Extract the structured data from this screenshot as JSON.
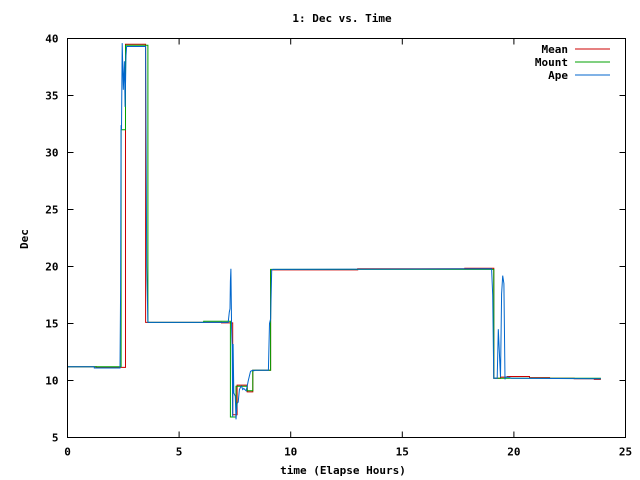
{
  "chart_data": {
    "type": "line",
    "title": "1: Dec vs. Time",
    "xlabel": "time (Elapse Hours)",
    "ylabel": "Dec",
    "xlim": [
      0,
      25
    ],
    "ylim": [
      5,
      40
    ],
    "xticks": [
      0,
      5,
      10,
      15,
      20,
      25
    ],
    "yticks": [
      5,
      10,
      15,
      20,
      25,
      30,
      35,
      40
    ],
    "grid": false,
    "legend_position": "top-right",
    "series": [
      {
        "name": "Mean",
        "color": "#cc0000",
        "x": [
          0,
          0.15,
          0.15,
          1.3,
          1.3,
          2.1,
          2.1,
          2.6,
          2.6,
          3.5,
          3.5,
          6.9,
          6.9,
          7.4,
          7.4,
          7.6,
          7.6,
          8.05,
          8.05,
          8.3,
          8.3,
          9.1,
          9.1,
          13.0,
          13.0,
          17.8,
          17.8,
          19.1,
          19.1,
          19.4,
          19.4,
          19.7,
          19.7,
          20.7,
          20.7,
          21.6,
          21.6,
          22.7,
          22.7,
          23.6,
          23.6,
          23.9
        ],
        "y": [
          11.2,
          11.2,
          11.2,
          11.2,
          11.15,
          11.15,
          11.15,
          11.15,
          39.5,
          39.5,
          15.1,
          15.1,
          15.05,
          15.05,
          7.0,
          7.0,
          9.6,
          9.6,
          9.0,
          9.0,
          10.9,
          10.9,
          19.7,
          19.7,
          19.8,
          19.8,
          19.85,
          19.85,
          10.2,
          10.2,
          10.3,
          10.3,
          10.35,
          10.35,
          10.25,
          10.25,
          10.2,
          10.2,
          10.15,
          10.15,
          10.1,
          10.1
        ]
      },
      {
        "name": "Mount",
        "color": "#00a000",
        "x": [
          0,
          2.4,
          2.4,
          2.6,
          2.6,
          3.6,
          3.6,
          6.1,
          6.1,
          7.3,
          7.3,
          7.55,
          7.55,
          8.05,
          8.05,
          8.3,
          8.3,
          9.1,
          9.1,
          19.1,
          19.1,
          19.4,
          19.4,
          23.9
        ],
        "y": [
          11.2,
          11.2,
          32.0,
          32.0,
          39.4,
          39.4,
          15.1,
          15.1,
          15.2,
          15.2,
          6.8,
          6.8,
          9.5,
          9.5,
          9.1,
          9.1,
          10.9,
          10.9,
          19.75,
          19.75,
          10.2,
          10.2,
          10.2,
          10.2
        ]
      },
      {
        "name": "Ape",
        "color": "#0066cc",
        "x": [
          0,
          1.2,
          1.2,
          2.35,
          2.38,
          2.4,
          2.42,
          2.45,
          2.5,
          2.55,
          2.58,
          2.62,
          2.65,
          2.7,
          2.75,
          3.4,
          3.5,
          3.53,
          3.55,
          3.6,
          7.2,
          7.25,
          7.28,
          7.3,
          7.32,
          7.35,
          7.38,
          7.4,
          7.42,
          7.45,
          7.5,
          7.52,
          7.55,
          7.58,
          7.6,
          7.65,
          7.7,
          7.75,
          7.8,
          7.85,
          7.9,
          8.0,
          8.05,
          8.1,
          8.2,
          8.3,
          8.35,
          8.4,
          9.0,
          9.05,
          9.1,
          9.15,
          9.2,
          19.0,
          19.05,
          19.08,
          19.1,
          19.15,
          19.2,
          19.25,
          19.3,
          19.4,
          19.45,
          19.5,
          19.55,
          19.6,
          19.62,
          19.65,
          19.7,
          19.75,
          19.8,
          19.9,
          20.0,
          23.9
        ],
        "y": [
          11.2,
          11.2,
          11.1,
          11.1,
          18.0,
          32.4,
          32.0,
          39.6,
          35.5,
          38.0,
          34.0,
          38.5,
          39.3,
          39.3,
          39.3,
          39.3,
          39.3,
          27.3,
          20.0,
          15.1,
          15.1,
          16.0,
          16.3,
          18.7,
          19.8,
          14.6,
          13.0,
          6.8,
          13.2,
          8.9,
          8.7,
          8.6,
          6.6,
          7.5,
          8.0,
          8.1,
          9.2,
          9.4,
          9.5,
          9.2,
          9.3,
          9.1,
          9.5,
          10.0,
          10.8,
          10.9,
          10.85,
          10.9,
          10.9,
          15.0,
          15.4,
          19.7,
          19.75,
          19.8,
          17.5,
          12.6,
          10.2,
          10.2,
          10.2,
          10.2,
          14.5,
          10.3,
          17.6,
          19.2,
          18.5,
          10.1,
          10.3,
          10.3,
          10.3,
          10.3,
          10.25,
          10.2,
          10.2,
          10.15
        ]
      }
    ]
  }
}
